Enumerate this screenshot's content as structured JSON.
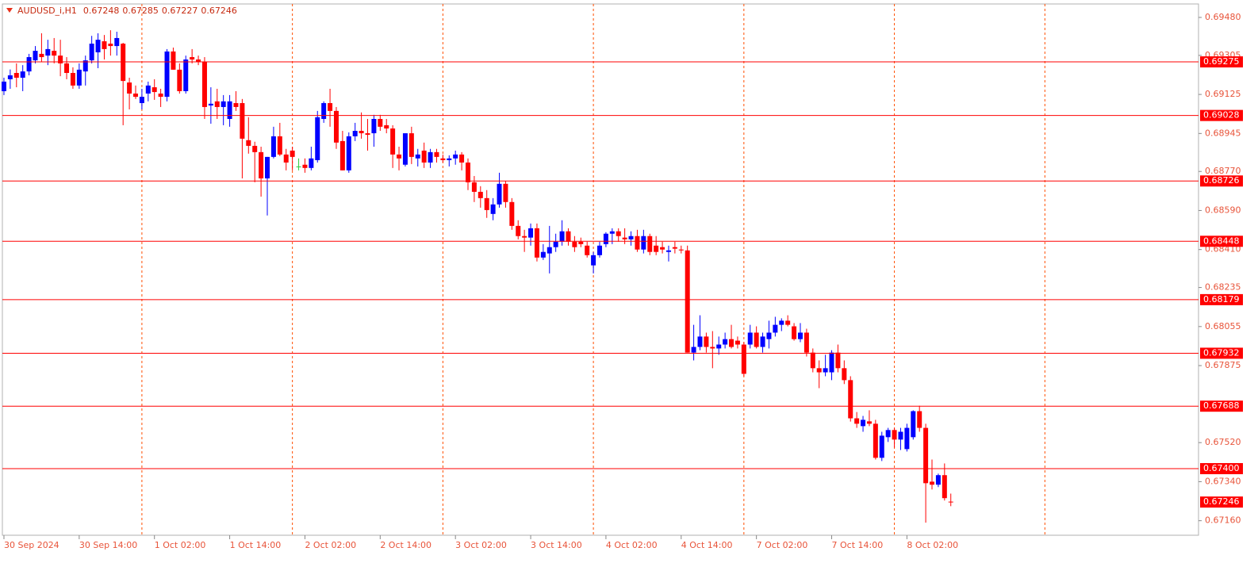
{
  "chart_data": {
    "type": "candlestick",
    "title": "AUDUSD_i,H1",
    "up_color": "#0000ff",
    "down_color": "#ff0000",
    "doji_color": "#2ecc40",
    "level_color": "#ff0000",
    "grid_color": "#ff4d00",
    "ylim": [
      0.67093,
      0.69542
    ],
    "xlim": [
      -0.25,
      190.5
    ],
    "yticks": [
      {
        "value": 0.6948,
        "label": "0.69480"
      },
      0.69305,
      0.69125,
      0.68945,
      {
        "value": 0.6877,
        "label": "0.68770"
      },
      {
        "value": 0.6859,
        "label": "0.68590"
      },
      {
        "value": 0.6841,
        "label": "0.68410"
      },
      0.68235,
      0.68055,
      0.67875,
      {
        "value": 0.6752,
        "label": "0.67520"
      },
      {
        "value": 0.6734,
        "label": "0.67340"
      },
      {
        "value": 0.6716,
        "label": "0.67160"
      }
    ],
    "levels": [
      0.69275,
      0.69028,
      0.68726,
      0.68448,
      0.68179,
      0.67932,
      0.67688,
      {
        "value": 0.674,
        "label": "0.67400"
      }
    ],
    "xticks": [
      {
        "value": 0,
        "label": "30 Sep 2024"
      },
      {
        "value": 12,
        "label": "30 Sep 14:00"
      },
      {
        "value": 24,
        "label": "1 Oct 02:00"
      },
      {
        "value": 36,
        "label": "1 Oct 14:00"
      },
      {
        "value": 48,
        "label": "2 Oct 02:00"
      },
      {
        "value": 60,
        "label": "2 Oct 14:00"
      },
      {
        "value": 72,
        "label": "3 Oct 02:00"
      },
      {
        "value": 84,
        "label": "3 Oct 14:00"
      },
      {
        "value": 96,
        "label": "4 Oct 02:00"
      },
      {
        "value": 108,
        "label": "4 Oct 14:00"
      },
      {
        "value": 120,
        "label": "7 Oct 02:00"
      },
      {
        "value": 132,
        "label": "7 Oct 14:00"
      },
      {
        "value": 144,
        "label": "8 Oct 02:00"
      }
    ],
    "xgrid": [
      22,
      46,
      70,
      94,
      118,
      142,
      166
    ],
    "candles": [
      [
        0.6914,
        0.69202,
        0.69122,
        0.69184
      ],
      [
        0.69195,
        0.6924,
        0.69151,
        0.69213
      ],
      [
        0.69224,
        0.69268,
        0.69158,
        0.69202
      ],
      [
        0.69202,
        0.6926,
        0.6914,
        0.69231
      ],
      [
        0.69231,
        0.69312,
        0.69213,
        0.69297
      ],
      [
        0.69282,
        0.69348,
        0.69268,
        0.69326
      ],
      [
        0.69312,
        0.69407,
        0.69275,
        0.69297
      ],
      [
        0.69304,
        0.69377,
        0.6926,
        0.69334
      ],
      [
        0.69326,
        0.69385,
        0.69268,
        0.69304
      ],
      [
        0.69304,
        0.69377,
        0.69209,
        0.69268
      ],
      [
        0.69268,
        0.69297,
        0.69195,
        0.69224
      ],
      [
        0.69224,
        0.6925,
        0.69151,
        0.69166
      ],
      [
        0.69166,
        0.69268,
        0.69151,
        0.69239
      ],
      [
        0.69231,
        0.69304,
        0.69166,
        0.69282
      ],
      [
        0.69282,
        0.69395,
        0.69268,
        0.69359
      ],
      [
        0.69319,
        0.69407,
        0.69246,
        0.69377
      ],
      [
        0.6937,
        0.69399,
        0.69286,
        0.69334
      ],
      [
        0.69359,
        0.69421,
        0.69304,
        0.69348
      ],
      [
        0.69348,
        0.69414,
        0.69304,
        0.69385
      ],
      [
        0.69359,
        0.69363,
        0.68983,
        0.69187
      ],
      [
        0.6918,
        0.69202,
        0.69056,
        0.69129
      ],
      [
        0.69129,
        0.69166,
        0.69104,
        0.69114
      ],
      [
        0.69085,
        0.69151,
        0.69056,
        0.69114
      ],
      [
        0.69129,
        0.69184,
        0.69093,
        0.69166
      ],
      [
        0.69158,
        0.69195,
        0.691,
        0.69136
      ],
      [
        0.69129,
        0.69151,
        0.69067,
        0.69114
      ],
      [
        0.69114,
        0.69334,
        0.69093,
        0.69323
      ],
      [
        0.69323,
        0.69341,
        0.69239,
        0.69239
      ],
      [
        0.69239,
        0.69268,
        0.69129,
        0.6914
      ],
      [
        0.6914,
        0.69304,
        0.69129,
        0.69286
      ],
      [
        0.69297,
        0.69334,
        0.69268,
        0.69286
      ],
      [
        0.69286,
        0.69304,
        0.6926,
        0.69275
      ],
      [
        0.69275,
        0.69297,
        0.69012,
        0.69067
      ],
      [
        0.69074,
        0.69158,
        0.6899,
        0.69082
      ],
      [
        0.69093,
        0.69151,
        0.69012,
        0.69067
      ],
      [
        0.69067,
        0.69122,
        0.68983,
        0.69093
      ],
      [
        0.69012,
        0.69122,
        0.68976,
        0.69093
      ],
      [
        0.69085,
        0.6914,
        0.69049,
        0.69067
      ],
      [
        0.69085,
        0.69104,
        0.68738,
        0.68921
      ],
      [
        0.68914,
        0.6902,
        0.68852,
        0.68888
      ],
      [
        0.68888,
        0.68907,
        0.6872,
        0.68859
      ],
      [
        0.68859,
        0.68884,
        0.68654,
        0.68738
      ],
      [
        0.68738,
        0.68837,
        0.68567,
        0.68837
      ],
      [
        0.68837,
        0.68976,
        0.6883,
        0.68932
      ],
      [
        0.68932,
        0.68994,
        0.68841,
        0.68848
      ],
      [
        0.68848,
        0.68874,
        0.68775,
        0.68811
      ],
      [
        0.68866,
        0.68884,
        0.68775,
        0.68837
      ],
      [
        0.68793,
        0.6883,
        0.68775,
        0.68793
      ],
      [
        0.68801,
        0.6883,
        0.68764,
        0.68786
      ],
      [
        0.68786,
        0.68884,
        0.68775,
        0.6883
      ],
      [
        0.68822,
        0.69049,
        0.68811,
        0.6902
      ],
      [
        0.69012,
        0.69093,
        0.68994,
        0.69085
      ],
      [
        0.69085,
        0.69151,
        0.68976,
        0.69049
      ],
      [
        0.69049,
        0.69067,
        0.68874,
        0.68903
      ],
      [
        0.6891,
        0.68957,
        0.68775,
        0.68775
      ],
      [
        0.68775,
        0.6895,
        0.68764,
        0.68932
      ],
      [
        0.68932,
        0.68994,
        0.6891,
        0.68957
      ],
      [
        0.68957,
        0.69042,
        0.68921,
        0.68946
      ],
      [
        0.68946,
        0.69012,
        0.68866,
        0.68939
      ],
      [
        0.68946,
        0.69031,
        0.68884,
        0.69012
      ],
      [
        0.69012,
        0.69031,
        0.68957,
        0.68976
      ],
      [
        0.68983,
        0.69012,
        0.68946,
        0.68968
      ],
      [
        0.68968,
        0.68983,
        0.68786,
        0.68848
      ],
      [
        0.68848,
        0.68884,
        0.68775,
        0.6883
      ],
      [
        0.68801,
        0.68946,
        0.68793,
        0.68946
      ],
      [
        0.68946,
        0.68976,
        0.68804,
        0.68837
      ],
      [
        0.6883,
        0.68874,
        0.68793,
        0.68848
      ],
      [
        0.68866,
        0.68903,
        0.68786,
        0.68811
      ],
      [
        0.68811,
        0.68874,
        0.68786,
        0.68859
      ],
      [
        0.68859,
        0.68874,
        0.68811,
        0.68837
      ],
      [
        0.6883,
        0.68848,
        0.68811,
        0.68822
      ],
      [
        0.68822,
        0.68844,
        0.68793,
        0.6883
      ],
      [
        0.6883,
        0.68866,
        0.68801,
        0.68848
      ],
      [
        0.68848,
        0.68859,
        0.68775,
        0.68811
      ],
      [
        0.68811,
        0.6883,
        0.68684,
        0.6872
      ],
      [
        0.6872,
        0.68749,
        0.68629,
        0.68676
      ],
      [
        0.68676,
        0.68702,
        0.68603,
        0.68647
      ],
      [
        0.68647,
        0.68684,
        0.68556,
        0.68592
      ],
      [
        0.68574,
        0.68647,
        0.68545,
        0.68618
      ],
      [
        0.68618,
        0.68764,
        0.68603,
        0.68713
      ],
      [
        0.68713,
        0.68727,
        0.68603,
        0.68629
      ],
      [
        0.68629,
        0.68647,
        0.68501,
        0.68519
      ],
      [
        0.68519,
        0.68545,
        0.68457,
        0.68472
      ],
      [
        0.68472,
        0.68501,
        0.68399,
        0.68465
      ],
      [
        0.68465,
        0.6853,
        0.68428,
        0.68508
      ],
      [
        0.68508,
        0.6853,
        0.68355,
        0.68373
      ],
      [
        0.68373,
        0.68435,
        0.68362,
        0.68399
      ],
      [
        0.68392,
        0.68519,
        0.683,
        0.68421
      ],
      [
        0.68421,
        0.68483,
        0.68399,
        0.68446
      ],
      [
        0.68446,
        0.68545,
        0.68428,
        0.68494
      ],
      [
        0.68494,
        0.68508,
        0.68428,
        0.68446
      ],
      [
        0.68446,
        0.68472,
        0.68399,
        0.68421
      ],
      [
        0.68446,
        0.68465,
        0.68421,
        0.68435
      ],
      [
        0.68428,
        0.68446,
        0.68373,
        0.68384
      ],
      [
        0.68337,
        0.68399,
        0.683,
        0.68384
      ],
      [
        0.68384,
        0.68446,
        0.68373,
        0.68428
      ],
      [
        0.68435,
        0.6849,
        0.68421,
        0.68483
      ],
      [
        0.68483,
        0.68508,
        0.68435,
        0.68494
      ],
      [
        0.68494,
        0.68508,
        0.68446,
        0.68472
      ],
      [
        0.68465,
        0.68508,
        0.68435,
        0.68457
      ],
      [
        0.68457,
        0.68494,
        0.68428,
        0.68472
      ],
      [
        0.68472,
        0.68501,
        0.68399,
        0.6841
      ],
      [
        0.6841,
        0.68501,
        0.68392,
        0.68472
      ],
      [
        0.68472,
        0.68483,
        0.68384,
        0.68399
      ],
      [
        0.68428,
        0.68472,
        0.68384,
        0.68399
      ],
      [
        0.68421,
        0.68446,
        0.68392,
        0.6841
      ],
      [
        0.68399,
        0.68428,
        0.68355,
        0.68406
      ],
      [
        0.68421,
        0.68446,
        0.68392,
        0.68414
      ],
      [
        0.6841,
        0.68428,
        0.68392,
        0.68406
      ],
      [
        0.68406,
        0.68428,
        0.67935,
        0.67935
      ],
      [
        0.67935,
        0.68063,
        0.67899,
        0.67961
      ],
      [
        0.67961,
        0.68107,
        0.67946,
        0.68009
      ],
      [
        0.68009,
        0.68027,
        0.67935,
        0.67961
      ],
      [
        0.67961,
        0.68034,
        0.67863,
        0.67954
      ],
      [
        0.67954,
        0.68009,
        0.67925,
        0.67972
      ],
      [
        0.67972,
        0.68027,
        0.67954,
        0.67997
      ],
      [
        0.67997,
        0.68063,
        0.67954,
        0.67961
      ],
      [
        0.6799,
        0.68009,
        0.67954,
        0.67972
      ],
      [
        0.67972,
        0.67983,
        0.67826,
        0.67837
      ],
      [
        0.67972,
        0.68063,
        0.67954,
        0.68027
      ],
      [
        0.68027,
        0.68056,
        0.67954,
        0.67961
      ],
      [
        0.67961,
        0.68027,
        0.67935,
        0.68009
      ],
      [
        0.67997,
        0.68082,
        0.67954,
        0.68027
      ],
      [
        0.68027,
        0.681,
        0.68009,
        0.68063
      ],
      [
        0.68063,
        0.68093,
        0.68034,
        0.68082
      ],
      [
        0.68082,
        0.68107,
        0.68056,
        0.68063
      ],
      [
        0.68056,
        0.68071,
        0.6799,
        0.67997
      ],
      [
        0.67997,
        0.68071,
        0.67983,
        0.68027
      ],
      [
        0.68027,
        0.68045,
        0.67917,
        0.67935
      ],
      [
        0.67935,
        0.67954,
        0.67844,
        0.67863
      ],
      [
        0.67863,
        0.67899,
        0.67771,
        0.67844
      ],
      [
        0.67844,
        0.67925,
        0.67826,
        0.67863
      ],
      [
        0.67844,
        0.67946,
        0.67808,
        0.67935
      ],
      [
        0.67935,
        0.67972,
        0.67844,
        0.67863
      ],
      [
        0.67863,
        0.67899,
        0.6779,
        0.67808
      ],
      [
        0.67808,
        0.67826,
        0.67617,
        0.67632
      ],
      [
        0.67632,
        0.67661,
        0.67588,
        0.67607
      ],
      [
        0.67596,
        0.67643,
        0.6757,
        0.67625
      ],
      [
        0.67618,
        0.67669,
        0.67596,
        0.67607
      ],
      [
        0.67607,
        0.67625,
        0.67442,
        0.6745
      ],
      [
        0.6745,
        0.6757,
        0.67435,
        0.67552
      ],
      [
        0.67545,
        0.67588,
        0.67523,
        0.67578
      ],
      [
        0.67578,
        0.67588,
        0.67497,
        0.67534
      ],
      [
        0.67534,
        0.67588,
        0.67486,
        0.6757
      ],
      [
        0.6749,
        0.67607,
        0.67479,
        0.67588
      ],
      [
        0.67545,
        0.67669,
        0.67534,
        0.67665
      ],
      [
        0.67665,
        0.6769,
        0.6757,
        0.67588
      ],
      [
        0.67588,
        0.67607,
        0.67151,
        0.67333
      ],
      [
        0.6734,
        0.67442,
        0.67304,
        0.67326
      ],
      [
        0.67326,
        0.67377,
        0.67315,
        0.6737
      ],
      [
        0.6737,
        0.67424,
        0.67253,
        0.67264
      ],
      [
        0.67248,
        0.67285,
        0.67227,
        0.67246
      ]
    ]
  }
}
